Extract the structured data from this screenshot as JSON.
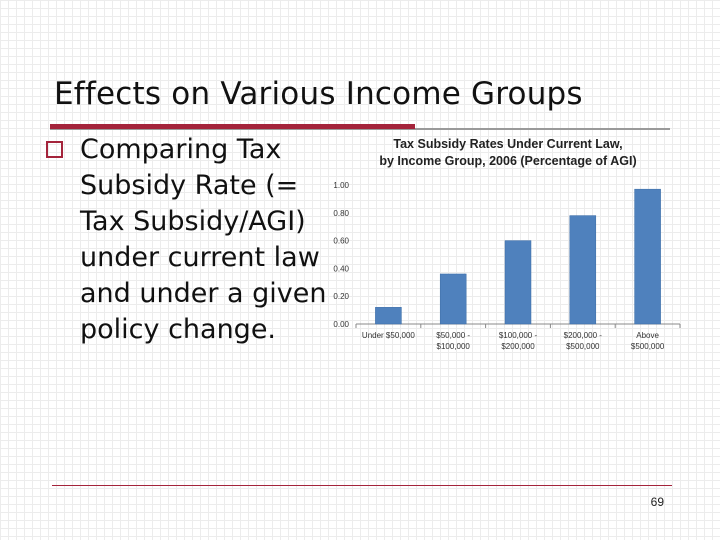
{
  "slide": {
    "title": "Effects on Various Income Groups",
    "bullet_text": "Comparing Tax Subsidy Rate (= Tax Subsidy/AGI) under current law and under a given policy change.",
    "page_number": "69"
  },
  "colors": {
    "accent": "#a4243b",
    "bar": "#4f81bd",
    "bar_edge": "#3a6ba5"
  },
  "chart_data": {
    "type": "bar",
    "title": "Tax Subsidy Rates Under Current Law, by Income Group, 2006 (Percentage of AGI)",
    "title_lines": [
      "Tax Subsidy Rates Under Current Law,",
      "by Income Group, 2006 (Percentage of AGI)"
    ],
    "categories": [
      "Under $50,000",
      "$50,000 - $100,000",
      "$100,000 - $200,000",
      "$200,000 - $500,000",
      "Above $500,000"
    ],
    "category_lines": [
      [
        "Under $50,000"
      ],
      [
        "$50,000 -",
        "$100,000"
      ],
      [
        "$100,000 -",
        "$200,000"
      ],
      [
        "$200,000 -",
        "$500,000"
      ],
      [
        "Above",
        "$500,000"
      ]
    ],
    "values": [
      0.12,
      0.36,
      0.6,
      0.78,
      0.97
    ],
    "y_ticks": [
      "0.00",
      "0.20",
      "0.40",
      "0.60",
      "0.80",
      "1.00"
    ],
    "ylim": [
      0,
      1
    ],
    "grid": false,
    "legend": "none"
  }
}
